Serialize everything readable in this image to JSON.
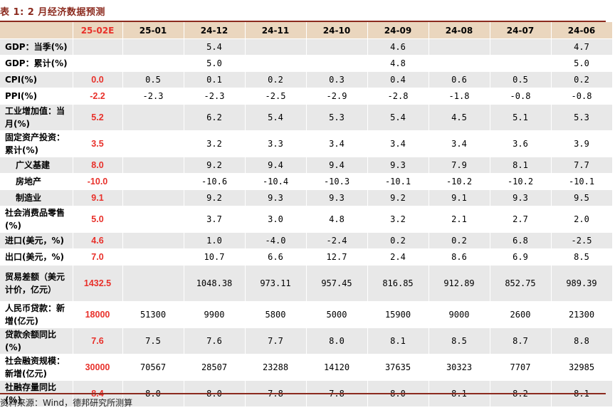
{
  "caption": "表 1: 2 月经济数据预测",
  "source_note": "资料来源：Wind，德邦研究所测算",
  "columns": [
    "",
    "25-02E",
    "25-01",
    "24-12",
    "24-11",
    "24-10",
    "24-09",
    "24-08",
    "24-07",
    "24-06"
  ],
  "rows": [
    {
      "label": "GDP：当季(%)",
      "values": [
        "",
        "",
        "5.4",
        "",
        "",
        "4.6",
        "",
        "",
        "4.7"
      ]
    },
    {
      "label": "GDP：累计(%)",
      "values": [
        "",
        "",
        "5.0",
        "",
        "",
        "4.8",
        "",
        "",
        "5.0"
      ]
    },
    {
      "label": "CPI(%)",
      "values": [
        "0.0",
        "0.5",
        "0.1",
        "0.2",
        "0.3",
        "0.4",
        "0.6",
        "0.5",
        "0.2"
      ]
    },
    {
      "label": "PPI(%)",
      "values": [
        "-2.2",
        "-2.3",
        "-2.3",
        "-2.5",
        "-2.9",
        "-2.8",
        "-1.8",
        "-0.8",
        "-0.8"
      ]
    },
    {
      "label": "工业增加值：当月(%)",
      "values": [
        "5.2",
        "",
        "6.2",
        "5.4",
        "5.3",
        "5.4",
        "4.5",
        "5.1",
        "5.3"
      ]
    },
    {
      "label": "固定资产投资：累计(%)",
      "values": [
        "3.5",
        "",
        "3.2",
        "3.3",
        "3.4",
        "3.4",
        "3.4",
        "3.6",
        "3.9"
      ]
    },
    {
      "label": "广义基建",
      "sub": true,
      "values": [
        "8.0",
        "",
        "9.2",
        "9.4",
        "9.4",
        "9.3",
        "7.9",
        "8.1",
        "7.7"
      ]
    },
    {
      "label": "房地产",
      "sub": true,
      "values": [
        "-10.0",
        "",
        "-10.6",
        "-10.4",
        "-10.3",
        "-10.1",
        "-10.2",
        "-10.2",
        "-10.1"
      ]
    },
    {
      "label": "制造业",
      "sub": true,
      "values": [
        "9.1",
        "",
        "9.2",
        "9.3",
        "9.3",
        "9.2",
        "9.1",
        "9.3",
        "9.5"
      ]
    },
    {
      "label": "社会消费品零售(%)",
      "values": [
        "5.0",
        "",
        "3.7",
        "3.0",
        "4.8",
        "3.2",
        "2.1",
        "2.7",
        "2.0"
      ]
    },
    {
      "label": "进口(美元，%)",
      "values": [
        "4.6",
        "",
        "1.0",
        "-4.0",
        "-2.4",
        "0.2",
        "0.2",
        "6.8",
        "-2.5"
      ]
    },
    {
      "label": "出口(美元，%)",
      "values": [
        "7.0",
        "",
        "10.7",
        "6.6",
        "12.7",
        "2.4",
        "8.6",
        "6.9",
        "8.5"
      ]
    },
    {
      "label": "贸易差额（美元计价，亿元）",
      "values": [
        "1432.5",
        "",
        "1048.38",
        "973.11",
        "957.45",
        "816.85",
        "912.89",
        "852.75",
        "989.39"
      ]
    },
    {
      "label": "人民币贷款：新增(亿元)",
      "values": [
        "18000",
        "51300",
        "9900",
        "5800",
        "5000",
        "15900",
        "9000",
        "2600",
        "21300"
      ]
    },
    {
      "label": "贷款余额同比(%)",
      "values": [
        "7.6",
        "7.5",
        "7.6",
        "7.7",
        "8.0",
        "8.1",
        "8.5",
        "8.7",
        "8.8"
      ]
    },
    {
      "label": "社会融资规模：新增(亿元)",
      "values": [
        "30000",
        "70567",
        "28507",
        "23288",
        "14120",
        "37635",
        "30323",
        "7707",
        "32985"
      ]
    },
    {
      "label": "社融存量同比(%)",
      "values": [
        "8.4",
        "8.0",
        "8.0",
        "7.8",
        "7.8",
        "8.0",
        "8.1",
        "8.2",
        "8.1"
      ]
    }
  ]
}
